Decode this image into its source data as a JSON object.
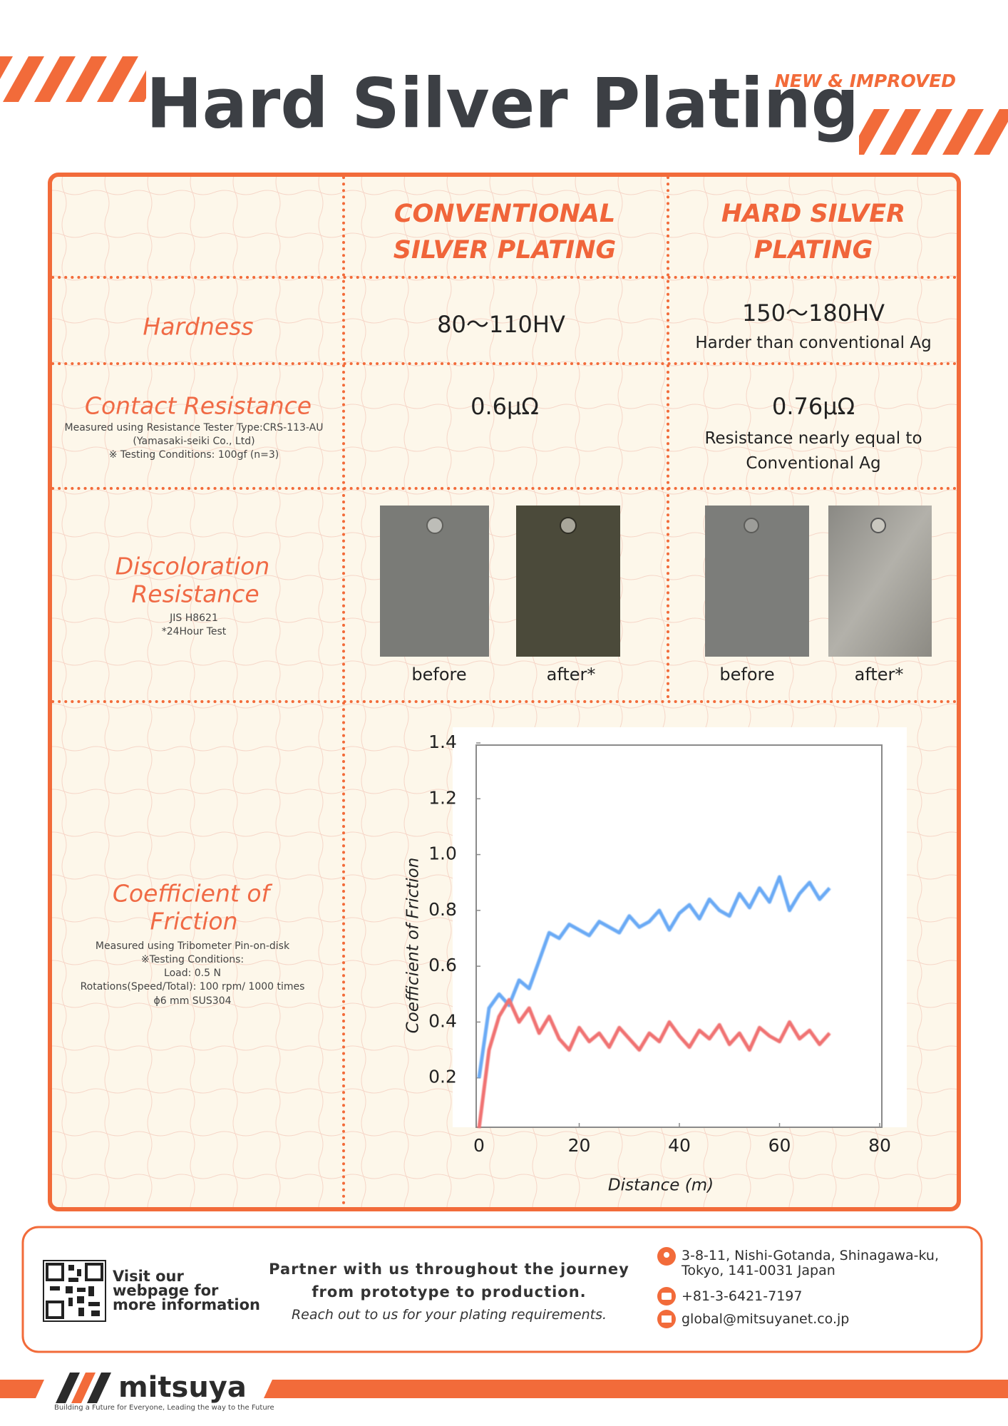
{
  "header": {
    "title": "Hard Silver Plating",
    "badge": "NEW & IMPROVED"
  },
  "table": {
    "columns": [
      [
        "CONVENTIONAL",
        "SILVER PLATING"
      ],
      [
        "HARD SILVER",
        "PLATING"
      ]
    ],
    "rows": [
      {
        "label": [
          "Hardness"
        ],
        "conventional": [
          "80〜110HV"
        ],
        "hard": [
          "150〜180HV",
          "Harder than conventional Ag"
        ]
      },
      {
        "label": [
          "Contact Resistance"
        ],
        "notes": [
          "Measured using Resistance Tester Type:CRS-113-AU",
          "(Yamasaki-seiki Co., Ltd)",
          "※ Testing Conditions: 100gf (n=3)"
        ],
        "conventional": [
          "0.6μΩ"
        ],
        "hard": [
          "0.76μΩ",
          "Resistance nearly equal to",
          "Conventional Ag"
        ]
      },
      {
        "label": [
          "Discoloration",
          "Resistance"
        ],
        "notes": [
          "JIS H8621",
          "*24Hour Test"
        ],
        "conventional": [
          "before",
          "after*"
        ],
        "hard": [
          "before",
          "after*"
        ]
      },
      {
        "label": [
          "Coefficient of",
          "Friction"
        ],
        "notes": [
          "Measured using Tribometer Pin-on-disk",
          "※Testing Conditions:",
          "Load: 0.5 N",
          "Rotations(Speed/Total): 100 rpm/ 1000 times",
          "ϕ6 mm SUS304"
        ]
      }
    ]
  },
  "chart_data": {
    "type": "line",
    "x_label": "Distance (m)",
    "y_label": "Coefficient of Friction",
    "x": [
      0,
      2,
      4,
      6,
      8,
      10,
      12,
      14,
      16,
      18,
      20,
      22,
      24,
      26,
      28,
      30,
      32,
      34,
      36,
      38,
      40,
      42,
      44,
      46,
      48,
      50,
      52,
      54,
      56,
      58,
      60,
      62,
      64,
      66,
      68,
      70
    ],
    "series": [
      {
        "color": "#6aaaf5",
        "values": [
          0.2,
          0.45,
          0.5,
          0.46,
          0.55,
          0.52,
          0.62,
          0.72,
          0.7,
          0.75,
          0.73,
          0.71,
          0.76,
          0.74,
          0.72,
          0.78,
          0.74,
          0.76,
          0.8,
          0.73,
          0.79,
          0.82,
          0.77,
          0.84,
          0.8,
          0.78,
          0.86,
          0.81,
          0.88,
          0.83,
          0.92,
          0.8,
          0.86,
          0.9,
          0.84,
          0.88
        ]
      },
      {
        "color": "#f07272",
        "values": [
          0.02,
          0.3,
          0.42,
          0.48,
          0.4,
          0.45,
          0.36,
          0.42,
          0.34,
          0.3,
          0.38,
          0.33,
          0.36,
          0.31,
          0.38,
          0.34,
          0.3,
          0.36,
          0.33,
          0.4,
          0.35,
          0.31,
          0.37,
          0.34,
          0.39,
          0.32,
          0.36,
          0.3,
          0.38,
          0.35,
          0.33,
          0.4,
          0.34,
          0.37,
          0.32,
          0.36
        ]
      }
    ],
    "xlim": [
      0,
      80
    ],
    "xticks": [
      0,
      20,
      40,
      60,
      80
    ],
    "ylim": [
      0,
      1.4
    ],
    "yticks": [
      0.2,
      0.4,
      0.6,
      0.8,
      {
        "value": 1,
        "label": "1.0"
      },
      1.2,
      1.4
    ]
  },
  "footer": {
    "qr_caption": [
      "Visit our",
      "webpage for",
      "more information"
    ],
    "message": [
      "Partner with us throughout the journey",
      "from prototype to production.",
      "Reach out to us for your plating requirements."
    ],
    "address": [
      "3-8-11, Nishi-Gotanda, Shinagawa-ku,",
      "Tokyo, 141-0031 Japan"
    ],
    "phone": "+81-3-6421-7197",
    "email": "global@mitsuyanet.co.jp",
    "brand": "mitsuya",
    "slogan": "Building a Future for Everyone, Leading the way to the Future"
  }
}
